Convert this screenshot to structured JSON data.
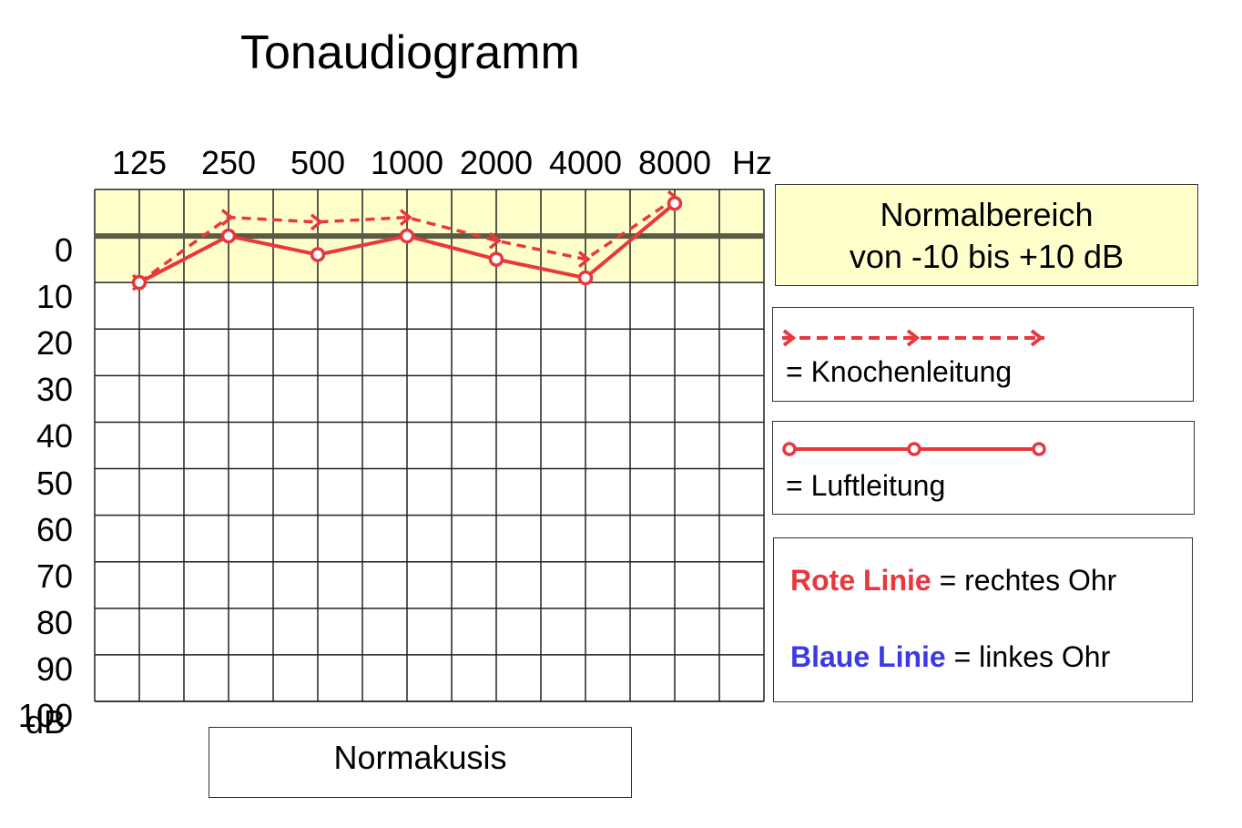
{
  "chart_data": {
    "type": "line",
    "title": "Tonaudiogramm",
    "x_unit": "Hz",
    "y_unit": "dB",
    "x_ticks": [
      "125",
      "250",
      "500",
      "1000",
      "2000",
      "4000",
      "8000"
    ],
    "y_ticks": [
      "0",
      "10",
      "20",
      "30",
      "40",
      "50",
      "60",
      "70",
      "80",
      "90",
      "100"
    ],
    "ylim": [
      -10,
      100
    ],
    "y_inverted": true,
    "normal_range": [
      -10,
      10
    ],
    "series": [
      {
        "name": "Knochenleitung",
        "style": "dashed-arrow",
        "color": "#e8373d",
        "x": [
          125,
          250,
          500,
          1000,
          2000,
          4000,
          8000
        ],
        "values": [
          10,
          -4,
          -3,
          -4,
          1,
          5,
          -8
        ]
      },
      {
        "name": "Luftleitung",
        "style": "solid-circle",
        "color": "#e8373d",
        "x": [
          125,
          250,
          500,
          1000,
          2000,
          4000,
          8000
        ],
        "values": [
          10,
          0,
          4,
          0,
          5,
          9,
          -7
        ]
      }
    ]
  },
  "normal_box": {
    "line1": "Normalbereich",
    "line2": "von -10 bis +10 dB"
  },
  "legend": {
    "bone": "= Knochenleitung",
    "air": "= Luftleitung",
    "red_label": "Rote Linie",
    "red_text": " = rechtes Ohr",
    "blue_label": "Blaue Linie",
    "blue_text": " = linkes Ohr"
  },
  "bottom_label": "Normakusis",
  "colors": {
    "red": "#e8373d",
    "blue": "#3a3ae6",
    "normal_band": "#ffffcc",
    "zero_line": "#5a5a46"
  }
}
